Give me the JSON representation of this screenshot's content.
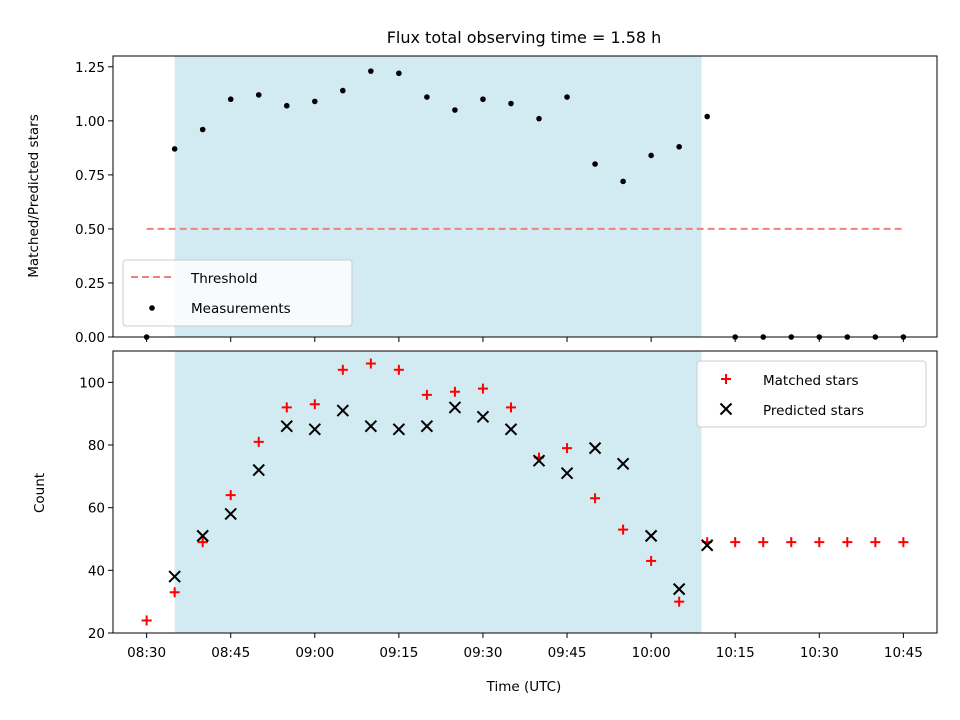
{
  "chart_data": {
    "title": "Flux total observing time = 1.58 h",
    "xlabel": "Time (UTC)",
    "x_ticks": [
      "08:30",
      "08:45",
      "09:00",
      "09:15",
      "09:30",
      "09:45",
      "10:00",
      "10:15",
      "10:30",
      "10:45"
    ],
    "shaded_interval": [
      "08:35",
      "10:09"
    ],
    "colors": {
      "shade": "#add8e6",
      "threshold": "#f08080",
      "matched": "#ff0000",
      "predicted": "#000000",
      "measurements": "#000000"
    },
    "panels": [
      {
        "type": "scatter",
        "ylabel": "Matched/Predicted stars",
        "ylim": [
          0,
          1.3
        ],
        "y_ticks": [
          "0.00",
          "0.25",
          "0.50",
          "0.75",
          "1.00",
          "1.25"
        ],
        "legend": {
          "placement": "lower-left",
          "entries": [
            "Threshold",
            "Measurements"
          ]
        },
        "threshold": {
          "name": "Threshold",
          "value": 0.5,
          "x_range": [
            "08:30",
            "10:45"
          ]
        },
        "series": [
          {
            "name": "Measurements",
            "x": [
              "08:30",
              "08:35",
              "08:40",
              "08:45",
              "08:50",
              "08:55",
              "09:00",
              "09:05",
              "09:10",
              "09:15",
              "09:20",
              "09:25",
              "09:30",
              "09:35",
              "09:40",
              "09:45",
              "09:50",
              "09:55",
              "10:00",
              "10:05",
              "10:10",
              "10:15",
              "10:20",
              "10:25",
              "10:30",
              "10:35",
              "10:40",
              "10:45"
            ],
            "values": [
              0.0,
              0.87,
              0.96,
              1.1,
              1.12,
              1.07,
              1.09,
              1.14,
              1.23,
              1.22,
              1.11,
              1.05,
              1.1,
              1.08,
              1.01,
              1.11,
              0.8,
              0.72,
              0.84,
              0.88,
              1.02,
              0.0,
              0.0,
              0.0,
              0.0,
              0.0,
              0.0,
              0.0
            ]
          }
        ]
      },
      {
        "type": "scatter",
        "ylabel": "Count",
        "ylim": [
          20,
          110
        ],
        "y_ticks": [
          "20",
          "40",
          "60",
          "80",
          "100"
        ],
        "legend": {
          "placement": "upper-right",
          "entries": [
            "Matched stars",
            "Predicted stars"
          ]
        },
        "series": [
          {
            "name": "Matched stars",
            "x": [
              "08:30",
              "08:35",
              "08:40",
              "08:45",
              "08:50",
              "08:55",
              "09:00",
              "09:05",
              "09:10",
              "09:15",
              "09:20",
              "09:25",
              "09:30",
              "09:35",
              "09:40",
              "09:45",
              "09:50",
              "09:55",
              "10:00",
              "10:05",
              "10:10",
              "10:15",
              "10:20",
              "10:25",
              "10:30",
              "10:35",
              "10:40",
              "10:45"
            ],
            "values": [
              24,
              33,
              49,
              64,
              81,
              92,
              93,
              104,
              106,
              104,
              96,
              97,
              98,
              92,
              76,
              79,
              63,
              53,
              43,
              30,
              49,
              49,
              49,
              49,
              49,
              49,
              49,
              49
            ]
          },
          {
            "name": "Predicted stars",
            "x": [
              "08:35",
              "08:40",
              "08:45",
              "08:50",
              "08:55",
              "09:00",
              "09:05",
              "09:10",
              "09:15",
              "09:20",
              "09:25",
              "09:30",
              "09:35",
              "09:40",
              "09:45",
              "09:50",
              "09:55",
              "10:00",
              "10:05",
              "10:10"
            ],
            "values": [
              38,
              51,
              58,
              72,
              86,
              85,
              91,
              86,
              85,
              86,
              92,
              89,
              85,
              75,
              71,
              79,
              74,
              51,
              34,
              48
            ]
          }
        ]
      }
    ]
  }
}
